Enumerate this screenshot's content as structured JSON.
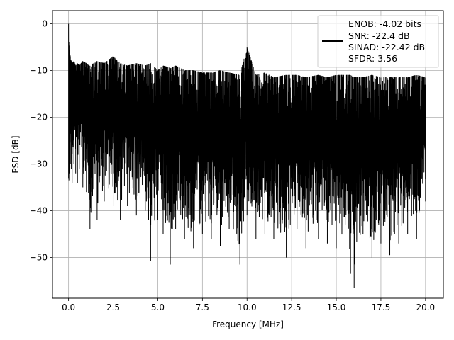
{
  "chart_data": {
    "type": "line",
    "title": "",
    "xlabel": "Frequency [MHz]",
    "ylabel": "PSD [dB]",
    "xlim": [
      -0.9,
      21.0
    ],
    "ylim": [
      -58.7,
      2.8
    ],
    "xticks": [
      0.0,
      2.5,
      5.0,
      7.5,
      10.0,
      12.5,
      15.0,
      17.5,
      20.0
    ],
    "xtick_labels": [
      "0.0",
      "2.5",
      "5.0",
      "7.5",
      "10.0",
      "12.5",
      "15.0",
      "17.5",
      "20.0"
    ],
    "yticks": [
      0,
      -10,
      -20,
      -30,
      -40,
      -50
    ],
    "ytick_labels": [
      "0",
      "−10",
      "−20",
      "−30",
      "−40",
      "−50"
    ],
    "grid": true,
    "legend_position": "upper-right",
    "legend": [
      "ENOB: -4.02 bits",
      "SNR: -22.4 dB",
      "SINAD: -22.42 dB",
      "SFDR: 3.56"
    ],
    "line_color": "#000000",
    "series": [
      {
        "x": [
          0.0,
          0.02,
          0.05,
          0.1,
          0.15,
          0.2,
          0.3,
          0.4,
          0.5,
          0.6,
          0.8,
          1.0,
          1.2,
          1.6,
          2.0,
          2.5,
          2.9,
          3.3,
          3.8,
          4.3,
          4.6,
          5.0,
          5.3,
          5.7,
          6.0,
          6.5,
          7.0,
          7.5,
          8.0,
          8.5,
          9.0,
          9.6,
          10.0,
          10.5,
          11.0,
          11.5,
          12.2,
          12.8,
          13.3,
          14.0,
          14.5,
          15.0,
          15.8,
          16.0,
          16.5,
          17.0,
          17.5,
          18.0,
          18.5,
          19.0,
          19.5,
          20.0
        ],
        "upper": [
          0.0,
          -4.0,
          -6.0,
          -7.0,
          -8.0,
          -8.5,
          -8.0,
          -9.0,
          -8.5,
          -9.0,
          -8.0,
          -8.5,
          -9.0,
          -8.0,
          -8.5,
          -7.0,
          -8.5,
          -9.0,
          -8.5,
          -9.0,
          -8.5,
          -10.0,
          -9.0,
          -9.5,
          -9.0,
          -10.0,
          -10.0,
          -10.5,
          -10.5,
          -10.0,
          -10.5,
          -11.0,
          -5.0,
          -11.0,
          -10.5,
          -11.5,
          -11.0,
          -11.0,
          -11.5,
          -11.0,
          -11.5,
          -11.0,
          -11.0,
          -11.5,
          -11.5,
          -11.0,
          -11.5,
          -11.5,
          -11.5,
          -11.5,
          -11.0,
          -11.5
        ],
        "lower": [
          -33.0,
          -33.5,
          -32.0,
          -30.0,
          -31.0,
          -34.0,
          -30.0,
          -32.0,
          -34.0,
          -31.0,
          -35.0,
          -36.0,
          -44.0,
          -42.0,
          -38.0,
          -39.0,
          -42.0,
          -39.0,
          -41.0,
          -40.0,
          -50.8,
          -42.0,
          -45.0,
          -51.5,
          -44.0,
          -46.0,
          -48.0,
          -45.0,
          -46.0,
          -47.5,
          -44.0,
          -51.5,
          -41.0,
          -46.0,
          -45.0,
          -46.0,
          -50.0,
          -44.0,
          -48.0,
          -46.0,
          -47.0,
          -48.0,
          -53.5,
          -56.5,
          -45.0,
          -50.0,
          -47.0,
          -49.5,
          -47.0,
          -45.0,
          -46.0,
          -38.0
        ]
      }
    ]
  }
}
